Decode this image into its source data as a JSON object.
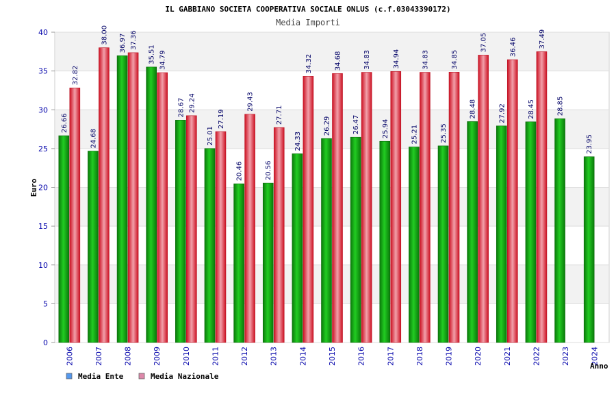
{
  "chart_data": {
    "type": "bar",
    "title": "IL GABBIANO SOCIETA COOPERATIVA SOCIALE ONLUS (c.f.03043390172)",
    "subtitle": "Media Importi",
    "xlabel": "Anno",
    "ylabel": "Euro",
    "ylim": [
      0,
      40
    ],
    "yticks": [
      "0",
      "5",
      "10",
      "15",
      "20",
      "25",
      "30",
      "35",
      "40"
    ],
    "categories": [
      "2006",
      "2007",
      "2008",
      "2009",
      "2010",
      "2011",
      "2012",
      "2013",
      "2014",
      "2015",
      "2016",
      "2017",
      "2018",
      "2019",
      "2020",
      "2021",
      "2022",
      "2023",
      "2024"
    ],
    "series": [
      {
        "name": "Media Ente",
        "color": "#11aa11",
        "legend_color": "#5599ee",
        "values": [
          26.66,
          24.68,
          36.97,
          35.51,
          28.67,
          25.01,
          20.46,
          20.56,
          24.33,
          26.29,
          26.47,
          25.94,
          25.21,
          25.35,
          28.48,
          27.92,
          28.45,
          28.85,
          23.95
        ],
        "labels": [
          "26.66",
          "24.68",
          "36.97",
          "35.51",
          "28.67",
          "25.01",
          "20.46",
          "20.56",
          "24.33",
          "26.29",
          "26.47",
          "25.94",
          "25.21",
          "25.35",
          "28.48",
          "27.92",
          "28.45",
          "28.85",
          "23.95"
        ]
      },
      {
        "name": "Media Nazionale",
        "color": "#dd2233",
        "legend_color": "#dd88aa",
        "values": [
          32.82,
          38.0,
          37.36,
          34.79,
          29.24,
          27.19,
          29.43,
          27.71,
          34.32,
          34.68,
          34.83,
          34.94,
          34.83,
          34.85,
          37.05,
          36.46,
          37.49,
          null,
          null
        ],
        "labels": [
          "32.82",
          "38.00",
          "37.36",
          "34.79",
          "29.24",
          "27.19",
          "29.43",
          "27.71",
          "34.32",
          "34.68",
          "34.83",
          "34.94",
          "34.83",
          "34.85",
          "37.05",
          "36.46",
          "37.49",
          null,
          null
        ]
      }
    ],
    "grid": true,
    "legend_position": "bottom-left"
  }
}
